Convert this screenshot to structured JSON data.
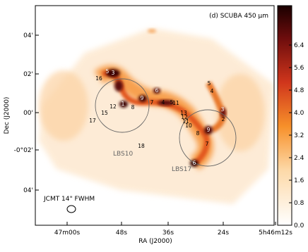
{
  "title": "(d) SCUBA 450 μm",
  "x_axis": {
    "label": "RA (J2000)",
    "ticks": [
      "47m00s",
      "48s",
      "36s",
      "24s",
      "5h46m12s"
    ]
  },
  "y_axis": {
    "label": "Dec (J2000)",
    "ticks": [
      "04'",
      "02'",
      "00'",
      "-0°02'",
      "04'"
    ]
  },
  "colorbar": {
    "lim": [
      0,
      7.8
    ],
    "ticks": [
      {
        "value": 0,
        "label": "0.0"
      },
      {
        "value": 0.8,
        "label": "0.8"
      },
      {
        "value": 1.6,
        "label": "1.6"
      },
      {
        "value": 2.4,
        "label": "2.4"
      },
      {
        "value": 3.2,
        "label": "3.2"
      },
      {
        "value": 4,
        "label": "4.0"
      },
      {
        "value": 4.8,
        "label": "4.8"
      },
      {
        "value": 5.6,
        "label": "5.6"
      },
      {
        "value": 6.4,
        "label": "6.4"
      }
    ]
  },
  "regions": [
    "LBS10",
    "LBS17"
  ],
  "beam_label": "JCMT 14\" FWHM",
  "sources": [
    "5",
    "3",
    "16",
    "12",
    "15",
    "17",
    "8",
    "1",
    "9",
    "6",
    "7",
    "4",
    "5",
    "11",
    "18",
    "13",
    "12",
    "11",
    "10",
    "8",
    "9",
    "7",
    "3",
    "2",
    "5",
    "4",
    "6"
  ]
}
